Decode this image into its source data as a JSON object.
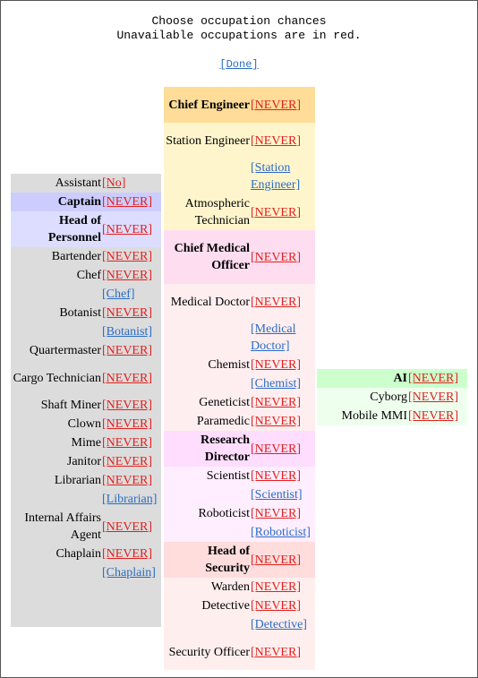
{
  "header": {
    "line1": "Choose occupation chances",
    "line2": "Unavailable occupations are in red.",
    "done_label": "[Done]"
  },
  "colors": {
    "never_link": "#e0211e",
    "pref_link": "#2a6cc4",
    "civilian_bg": "#dcdcdc",
    "captain_bg": "#ccccff",
    "hop_bg": "#ddddff",
    "engineering_head_bg": "#ffdd99",
    "engineering_bg": "#fff5cc",
    "medical_head_bg": "#ffddf0",
    "medical_bg": "#ffeef0",
    "science_head_bg": "#ffddff",
    "science_bg": "#ffeeff",
    "security_head_bg": "#ffdddd",
    "security_bg": "#ffeeee",
    "silicon_head_bg": "#ccffcc",
    "silicon_bg": "#eeffee"
  },
  "columns": [
    {
      "name": "left",
      "rows": [
        {
          "name": "Assistant",
          "value": "[No]",
          "state": "red",
          "bg": "#dcdcdc"
        },
        {
          "name": "Captain",
          "value": "[NEVER]",
          "state": "red",
          "bold": true,
          "bg": "#ccccff"
        },
        {
          "name": "Head of Personnel",
          "value": "[NEVER]",
          "state": "red",
          "bold": true,
          "bg": "#ddddff"
        },
        {
          "name": "Bartender",
          "value": "[NEVER]",
          "state": "red",
          "bg": "#dcdcdc"
        },
        {
          "name": "Chef",
          "value": "[NEVER]",
          "state": "red",
          "bg": "#dcdcdc"
        },
        {
          "name": "",
          "value": "[Chef]",
          "state": "blue",
          "bg": "#dcdcdc"
        },
        {
          "name": "Botanist",
          "value": "[NEVER]",
          "state": "red",
          "bg": "#dcdcdc"
        },
        {
          "name": "",
          "value": "[Botanist]",
          "state": "blue",
          "bg": "#dcdcdc"
        },
        {
          "name": "Quartermaster",
          "value": "[NEVER]",
          "state": "red",
          "bg": "#dcdcdc"
        },
        {
          "name": "Cargo Technician",
          "value": "[NEVER]",
          "state": "red",
          "bg": "#dcdcdc"
        },
        {
          "name": "Shaft Miner",
          "value": "[NEVER]",
          "state": "red",
          "bg": "#dcdcdc"
        },
        {
          "name": "Clown",
          "value": "[NEVER]",
          "state": "red",
          "bg": "#dcdcdc"
        },
        {
          "name": "Mime",
          "value": "[NEVER]",
          "state": "red",
          "bg": "#dcdcdc"
        },
        {
          "name": "Janitor",
          "value": "[NEVER]",
          "state": "red",
          "bg": "#dcdcdc"
        },
        {
          "name": "Librarian",
          "value": "[NEVER]",
          "state": "red",
          "bg": "#dcdcdc"
        },
        {
          "name": "",
          "value": "[Librarian]",
          "state": "blue",
          "bg": "#dcdcdc"
        },
        {
          "name": "Internal Affairs Agent",
          "value": "[NEVER]",
          "state": "red",
          "bg": "#dcdcdc"
        },
        {
          "name": "Chaplain",
          "value": "[NEVER]",
          "state": "red",
          "bg": "#dcdcdc"
        },
        {
          "name": "",
          "value": "[Chaplain]",
          "state": "blue",
          "bg": "#dcdcdc"
        },
        {
          "name": "",
          "value": "",
          "state": "none",
          "bg": "#dcdcdc"
        }
      ]
    },
    {
      "name": "middle",
      "rows": [
        {
          "name": "Chief Engineer",
          "value": "[NEVER]",
          "state": "red",
          "bold": true,
          "bg": "#ffdd99"
        },
        {
          "name": "Station Engineer",
          "value": "[NEVER]",
          "state": "red",
          "bg": "#fff5cc"
        },
        {
          "name": "",
          "value": "[Station Engineer]",
          "state": "blue",
          "bg": "#fff5cc"
        },
        {
          "name": "Atmospheric Technician",
          "value": "[NEVER]",
          "state": "red",
          "bg": "#fff5cc"
        },
        {
          "name": "Chief Medical Officer",
          "value": "[NEVER]",
          "state": "red",
          "bold": true,
          "bg": "#ffddf0"
        },
        {
          "name": "Medical Doctor",
          "value": "[NEVER]",
          "state": "red",
          "bg": "#ffeef0"
        },
        {
          "name": "",
          "value": "[Medical Doctor]",
          "state": "blue",
          "bg": "#ffeef0"
        },
        {
          "name": "Chemist",
          "value": "[NEVER]",
          "state": "red",
          "bg": "#ffeef0"
        },
        {
          "name": "",
          "value": "[Chemist]",
          "state": "blue",
          "bg": "#ffeef0"
        },
        {
          "name": "Geneticist",
          "value": "[NEVER]",
          "state": "red",
          "bg": "#ffeef0"
        },
        {
          "name": "Paramedic",
          "value": "[NEVER]",
          "state": "red",
          "bg": "#ffeef0"
        },
        {
          "name": "Research Director",
          "value": "[NEVER]",
          "state": "red",
          "bold": true,
          "bg": "#ffddff"
        },
        {
          "name": "Scientist",
          "value": "[NEVER]",
          "state": "red",
          "bg": "#ffeeff"
        },
        {
          "name": "",
          "value": "[Scientist]",
          "state": "blue",
          "bg": "#ffeeff"
        },
        {
          "name": "Roboticist",
          "value": "[NEVER]",
          "state": "red",
          "bg": "#ffeeff"
        },
        {
          "name": "",
          "value": "[Roboticist]",
          "state": "blue",
          "bg": "#ffeeff"
        },
        {
          "name": "Head of Security",
          "value": "[NEVER]",
          "state": "red",
          "bold": true,
          "bg": "#ffdddd"
        },
        {
          "name": "Warden",
          "value": "[NEVER]",
          "state": "red",
          "bg": "#ffeeee"
        },
        {
          "name": "Detective",
          "value": "[NEVER]",
          "state": "red",
          "bg": "#ffeeee"
        },
        {
          "name": "",
          "value": "[Detective]",
          "state": "blue",
          "bg": "#ffeeee"
        },
        {
          "name": "Security Officer",
          "value": "[NEVER]",
          "state": "red",
          "bg": "#ffeeee"
        }
      ]
    },
    {
      "name": "right",
      "rows": [
        {
          "name": "AI",
          "value": "[NEVER]",
          "state": "red",
          "bold": true,
          "bg": "#ccffcc"
        },
        {
          "name": "Cyborg",
          "value": "[NEVER]",
          "state": "red",
          "bg": "#eeffee"
        },
        {
          "name": "Mobile MMI",
          "value": "[NEVER]",
          "state": "red",
          "bg": "#eeffee"
        }
      ]
    }
  ]
}
